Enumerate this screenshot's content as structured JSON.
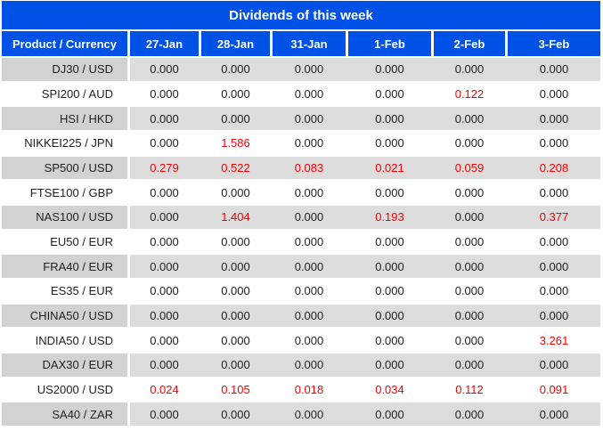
{
  "title": "Dividends of this week",
  "colors": {
    "header_bg": "#0052e6",
    "header_text": "#ffffff",
    "row_alt_bg": "#dcdcdc",
    "row_alt_label_bg": "#d2d2d2",
    "row_bg": "#ffffff",
    "zero_text": "#1e1e1e",
    "nonzero_text": "#f50000"
  },
  "chart_data": {
    "type": "table",
    "title": "Dividends of this week",
    "columns": [
      "Product / Currency",
      "27-Jan",
      "28-Jan",
      "31-Jan",
      "1-Feb",
      "2-Feb",
      "3-Feb"
    ],
    "rows": [
      {
        "product": "DJ30 / USD",
        "values": [
          "0.000",
          "0.000",
          "0.000",
          "0.000",
          "0.000",
          "0.000"
        ]
      },
      {
        "product": "SPI200 / AUD",
        "values": [
          "0.000",
          "0.000",
          "0.000",
          "0.000",
          "0.122",
          "0.000"
        ]
      },
      {
        "product": "HSI / HKD",
        "values": [
          "0.000",
          "0.000",
          "0.000",
          "0.000",
          "0.000",
          "0.000"
        ]
      },
      {
        "product": "NIKKEI225 / JPN",
        "values": [
          "0.000",
          "1.586",
          "0.000",
          "0.000",
          "0.000",
          "0.000"
        ]
      },
      {
        "product": "SP500 / USD",
        "values": [
          "0.279",
          "0.522",
          "0.083",
          "0.021",
          "0.059",
          "0.208"
        ]
      },
      {
        "product": "FTSE100 / GBP",
        "values": [
          "0.000",
          "0.000",
          "0.000",
          "0.000",
          "0.000",
          "0.000"
        ]
      },
      {
        "product": "NAS100 / USD",
        "values": [
          "0.000",
          "1.404",
          "0.000",
          "0.193",
          "0.000",
          "0.377"
        ]
      },
      {
        "product": "EU50 / EUR",
        "values": [
          "0.000",
          "0.000",
          "0.000",
          "0.000",
          "0.000",
          "0.000"
        ]
      },
      {
        "product": "FRA40 / EUR",
        "values": [
          "0.000",
          "0.000",
          "0.000",
          "0.000",
          "0.000",
          "0.000"
        ]
      },
      {
        "product": "ES35 / EUR",
        "values": [
          "0.000",
          "0.000",
          "0.000",
          "0.000",
          "0.000",
          "0.000"
        ]
      },
      {
        "product": "CHINA50 / USD",
        "values": [
          "0.000",
          "0.000",
          "0.000",
          "0.000",
          "0.000",
          "0.000"
        ]
      },
      {
        "product": "INDIA50 / USD",
        "values": [
          "0.000",
          "0.000",
          "0.000",
          "0.000",
          "0.000",
          "3.261"
        ]
      },
      {
        "product": "DAX30 / EUR",
        "values": [
          "0.000",
          "0.000",
          "0.000",
          "0.000",
          "0.000",
          "0.000"
        ]
      },
      {
        "product": "US2000 / USD",
        "values": [
          "0.024",
          "0.105",
          "0.018",
          "0.034",
          "0.112",
          "0.091"
        ]
      },
      {
        "product": "SA40 / ZAR",
        "values": [
          "0.000",
          "0.000",
          "0.000",
          "0.000",
          "0.000",
          "0.000"
        ]
      }
    ]
  }
}
